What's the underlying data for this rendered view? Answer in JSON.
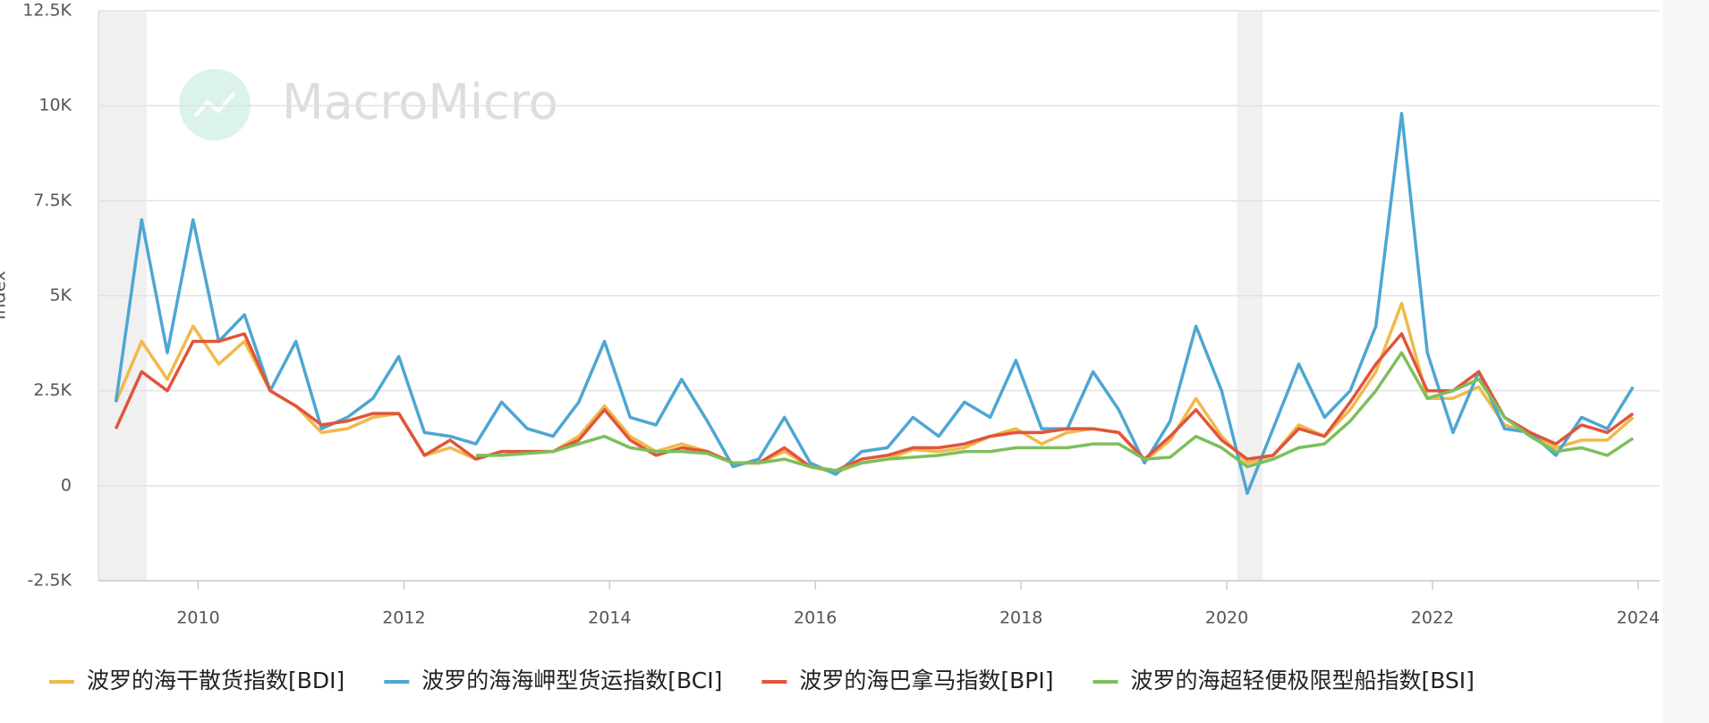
{
  "chart_data": {
    "type": "line",
    "ylabel": "Index",
    "watermark": "MacroMicro",
    "x": [
      2009.2,
      2009.45,
      2009.7,
      2009.95,
      2010.2,
      2010.45,
      2010.7,
      2010.95,
      2011.2,
      2011.45,
      2011.7,
      2011.95,
      2012.2,
      2012.45,
      2012.7,
      2012.95,
      2013.2,
      2013.45,
      2013.7,
      2013.95,
      2014.2,
      2014.45,
      2014.7,
      2014.95,
      2015.2,
      2015.45,
      2015.7,
      2015.95,
      2016.2,
      2016.45,
      2016.7,
      2016.95,
      2017.2,
      2017.45,
      2017.7,
      2017.95,
      2018.2,
      2018.45,
      2018.7,
      2018.95,
      2019.2,
      2019.45,
      2019.7,
      2019.95,
      2020.2,
      2020.45,
      2020.7,
      2020.95,
      2021.2,
      2021.45,
      2021.7,
      2021.95,
      2022.2,
      2022.45,
      2022.7,
      2022.95,
      2023.2,
      2023.45,
      2023.7,
      2023.95
    ],
    "series": [
      {
        "name": "波罗的海干散货指数[BDI]",
        "color": "#f0b94a",
        "values": [
          2200,
          3800,
          2800,
          4200,
          3200,
          3800,
          2500,
          2100,
          1400,
          1500,
          1800,
          1900,
          800,
          1000,
          700,
          900,
          900,
          900,
          1300,
          2100,
          1300,
          900,
          1100,
          900,
          600,
          600,
          900,
          500,
          350,
          600,
          700,
          950,
          900,
          1000,
          1300,
          1500,
          1100,
          1400,
          1500,
          1400,
          650,
          1200,
          2300,
          1300,
          600,
          800,
          1600,
          1300,
          2000,
          3000,
          4800,
          2300,
          2300,
          2600,
          1600,
          1400,
          1000,
          1200,
          1200,
          1800
        ]
      },
      {
        "name": "波罗的海海岬型货运指数[BCI]",
        "color": "#4ea6d3",
        "values": [
          2200,
          7000,
          3500,
          7000,
          3800,
          4500,
          2500,
          3800,
          1500,
          1800,
          2300,
          3400,
          1400,
          1300,
          1100,
          2200,
          1500,
          1300,
          2200,
          3800,
          1800,
          1600,
          2800,
          1700,
          500,
          700,
          1800,
          600,
          300,
          900,
          1000,
          1800,
          1300,
          2200,
          1800,
          3300,
          1500,
          1500,
          3000,
          2000,
          600,
          1700,
          4200,
          2500,
          -200,
          1500,
          3200,
          1800,
          2500,
          4200,
          9800,
          3500,
          1400,
          3000,
          1500,
          1400,
          800,
          1800,
          1500,
          2600
        ]
      },
      {
        "name": "波罗的海巴拿马指数[BPI]",
        "color": "#e0553a",
        "values": [
          1500,
          3000,
          2500,
          3800,
          3800,
          4000,
          2500,
          2100,
          1600,
          1700,
          1900,
          1900,
          800,
          1200,
          700,
          900,
          900,
          900,
          1200,
          2000,
          1200,
          800,
          1000,
          900,
          600,
          600,
          1000,
          500,
          400,
          700,
          800,
          1000,
          1000,
          1100,
          1300,
          1400,
          1400,
          1500,
          1500,
          1400,
          700,
          1300,
          2000,
          1200,
          700,
          800,
          1500,
          1300,
          2200,
          3200,
          4000,
          2500,
          2500,
          3000,
          1800,
          1400,
          1100,
          1600,
          1400,
          1900
        ]
      },
      {
        "name": "波罗的海超轻便极限型船指数[BSI]",
        "color": "#7dbf5c",
        "values": [
          null,
          null,
          null,
          null,
          null,
          null,
          null,
          null,
          null,
          null,
          null,
          null,
          null,
          null,
          800,
          800,
          850,
          900,
          1100,
          1300,
          1000,
          900,
          900,
          850,
          600,
          600,
          700,
          500,
          400,
          600,
          700,
          750,
          800,
          900,
          900,
          1000,
          1000,
          1000,
          1100,
          1100,
          700,
          750,
          1300,
          1000,
          500,
          700,
          1000,
          1100,
          1700,
          2500,
          3500,
          2300,
          2500,
          2800,
          1800,
          1300,
          900,
          1000,
          800,
          1250
        ]
      }
    ],
    "xlim": [
      2009.03,
      2024.21
    ],
    "xticks": [
      2010,
      2012,
      2014,
      2016,
      2018,
      2020,
      2022,
      2024
    ],
    "ylim": [
      -2500,
      12500
    ],
    "yticks": [
      {
        "value": -2500,
        "label": "-2.5K"
      },
      0,
      {
        "value": 2500,
        "label": "2.5K"
      },
      {
        "value": 5000,
        "label": "5K"
      },
      {
        "value": 7500,
        "label": "7.5K"
      },
      {
        "value": 10000,
        "label": "10K"
      },
      {
        "value": 12500,
        "label": "12.5K"
      }
    ],
    "shaded_periods": [
      [
        2009.03,
        2009.5
      ],
      [
        2020.1,
        2020.35
      ]
    ],
    "grid": true,
    "legend": "bottom"
  }
}
